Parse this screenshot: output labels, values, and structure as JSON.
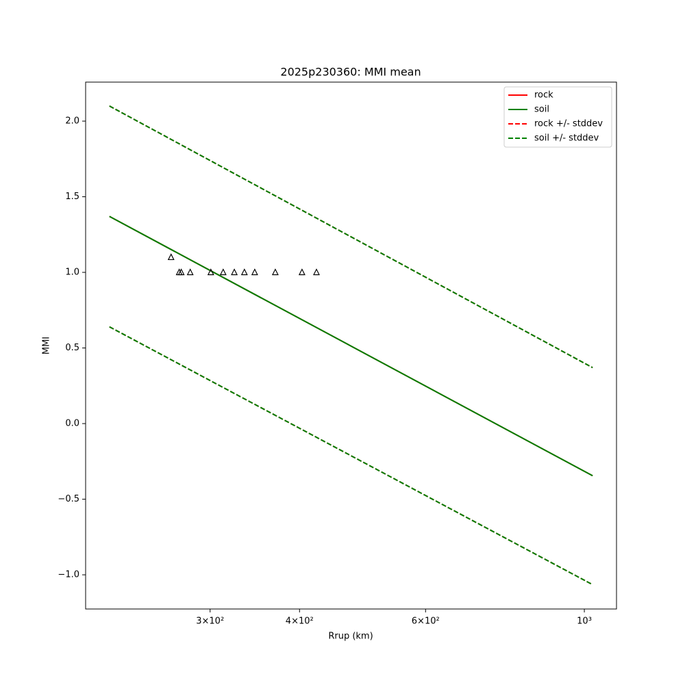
{
  "chart_data": {
    "type": "line",
    "title": "2025p230360: MMI mean",
    "x_label": "Rrup (km)",
    "y_label": "MMI",
    "x_scale": "log",
    "xlim": [
      201,
      1109
    ],
    "ylim": [
      -1.226,
      2.258
    ],
    "xticks": [
      {
        "value": 300,
        "label": "3×10²"
      },
      {
        "value": 400,
        "label": "4×10²"
      },
      {
        "value": 600,
        "label": "6×10²"
      },
      {
        "value": 1000,
        "label": "10³"
      }
    ],
    "yticks": [
      {
        "value": -1.0,
        "label": "−1.0"
      },
      {
        "value": -0.5,
        "label": "−0.5"
      },
      {
        "value": 0.0,
        "label": "0.0"
      },
      {
        "value": 0.5,
        "label": "0.5"
      },
      {
        "value": 1.0,
        "label": "1.0"
      },
      {
        "value": 1.5,
        "label": "1.5"
      },
      {
        "value": 2.0,
        "label": "2.0"
      }
    ],
    "legend_position": "upper right",
    "series": [
      {
        "name": "rock",
        "color": "#ff0000",
        "dashed": false,
        "x": [
          217,
          1027
        ],
        "values": [
          1.37,
          -0.345
        ]
      },
      {
        "name": "soil",
        "color": "#008000",
        "dashed": false,
        "x": [
          217,
          1027
        ],
        "values": [
          1.37,
          -0.345
        ]
      },
      {
        "name": "rock +/- stddev",
        "color": "#ff0000",
        "dashed": true,
        "x": [
          217,
          1027
        ],
        "upper": [
          2.1,
          0.37
        ],
        "lower": [
          0.64,
          -1.065
        ]
      },
      {
        "name": "soil +/- stddev",
        "color": "#008000",
        "dashed": true,
        "x": [
          217,
          1027
        ],
        "upper": [
          2.1,
          0.37
        ],
        "lower": [
          0.64,
          -1.065
        ]
      }
    ],
    "observations": {
      "color": "#000000",
      "marker": "triangle",
      "x": [
        264.6,
        271.6,
        273.4,
        281.4,
        300.7,
        312.9,
        324.3,
        335,
        346.3,
        370,
        403.2,
        422.4
      ],
      "values": [
        1.1,
        1.0,
        1.0,
        1.0,
        1.0,
        1.0,
        1.0,
        1.0,
        1.0,
        1.0,
        1.0,
        1.0
      ]
    }
  }
}
